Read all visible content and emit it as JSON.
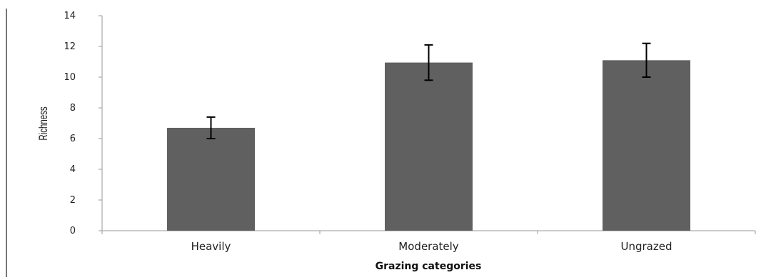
{
  "chart_data": {
    "type": "bar",
    "categories": [
      "Heavily",
      "Moderately",
      "Ungrazed"
    ],
    "values": [
      6.7,
      10.95,
      11.1
    ],
    "error": [
      0.7,
      1.15,
      1.1
    ],
    "xlabel": "Grazing categories",
    "ylabel": "Richness",
    "ylim": [
      0,
      14
    ],
    "yticks": [
      0,
      2,
      4,
      6,
      8,
      10,
      12,
      14
    ],
    "grid": false,
    "legend": "none",
    "bar_color": "#606060"
  }
}
